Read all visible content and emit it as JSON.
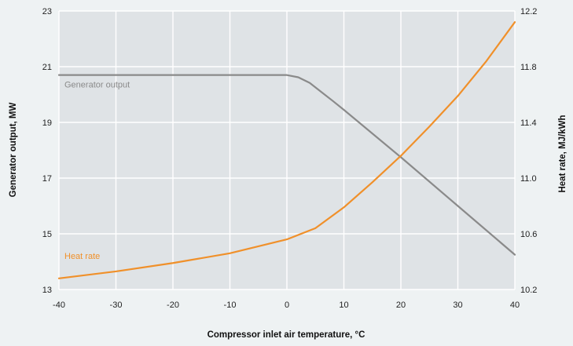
{
  "chart_data": {
    "type": "line",
    "xlabel": "Compressor inlet air temperature, °C",
    "ylabel_left": "Generator output, MW",
    "ylabel_right": "Heat rate, MJ/kWh",
    "xlim": [
      -40,
      40
    ],
    "ylim_left": [
      13,
      23
    ],
    "ylim_right": [
      10.2,
      12.2
    ],
    "grid": true,
    "x_ticks": [
      "-40",
      "-30",
      "-20",
      "-10",
      "0",
      "10",
      "20",
      "30",
      "40"
    ],
    "y_left_ticks": [
      "13",
      "15",
      "17",
      "19",
      "21",
      "23"
    ],
    "y_right_ticks": [
      "10.2",
      "10.6",
      "11.0",
      "11.4",
      "11.8",
      "12.2"
    ],
    "series": [
      {
        "name": "Generator output",
        "axis": "left",
        "color": "#8a8a8a",
        "x": [
          -40,
          -30,
          -20,
          -10,
          -5,
          0,
          2,
          4,
          6,
          8,
          10,
          20,
          30,
          40
        ],
        "y": [
          20.7,
          20.7,
          20.7,
          20.7,
          20.7,
          20.7,
          20.62,
          20.42,
          20.1,
          19.78,
          19.45,
          17.75,
          16.0,
          14.25
        ]
      },
      {
        "name": "Heat rate",
        "axis": "right",
        "color": "#f0902a",
        "x": [
          -40,
          -30,
          -20,
          -10,
          0,
          5,
          10,
          15,
          20,
          25,
          30,
          35,
          40
        ],
        "y": [
          10.28,
          10.33,
          10.39,
          10.46,
          10.56,
          10.64,
          10.79,
          10.97,
          11.16,
          11.37,
          11.59,
          11.84,
          12.12
        ]
      }
    ]
  }
}
